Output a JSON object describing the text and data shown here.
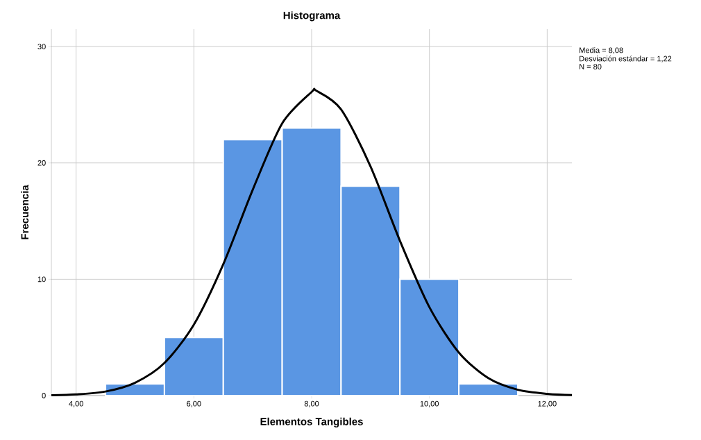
{
  "chart_data": {
    "type": "histogram",
    "title": "Histograma",
    "xlabel": "Elementos Tangibles",
    "ylabel": "Frecuencia",
    "bins": [
      4.5,
      5.5,
      6.5,
      7.5,
      8.5,
      9.5,
      10.5,
      11.5
    ],
    "values": [
      1,
      5,
      22,
      23,
      18,
      10,
      1
    ],
    "color": "#5a96e3",
    "series": [
      {
        "type": "line",
        "color": "#000000",
        "x": [
          3.58,
          4,
          4.5,
          5,
          5.5,
          6,
          6.5,
          7,
          7.5,
          8,
          8.08,
          8.5,
          9,
          9.5,
          10,
          10.5,
          11,
          11.5,
          12,
          12.42
        ],
        "values": [
          0.03,
          0.1,
          0.35,
          1.1,
          2.8,
          6.1,
          11.3,
          17.7,
          23.4,
          26.1,
          26.2,
          24.6,
          19.7,
          13.3,
          7.6,
          3.7,
          1.5,
          0.5,
          0.15,
          0.05
        ]
      }
    ],
    "xlim": [
      3.58,
      12.42
    ],
    "ylim": [
      0,
      31.5
    ],
    "xticks": [
      {
        "value": 4,
        "label": "4,00"
      },
      {
        "value": 6,
        "label": "6,00"
      },
      {
        "value": 8,
        "label": "8,00"
      },
      {
        "value": 10,
        "label": "10,00"
      },
      {
        "value": 12,
        "label": "12,00"
      }
    ],
    "yticks": [
      0,
      10,
      20,
      30
    ],
    "grid": true,
    "annotations": [
      "Media = 8,08",
      "Desviación estándar = 1,22",
      "N = 80"
    ]
  }
}
